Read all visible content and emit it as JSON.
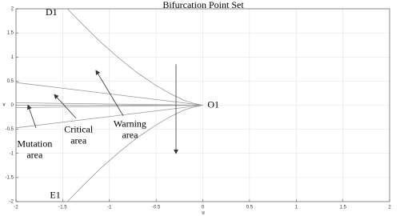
{
  "chart_data": {
    "type": "line",
    "title": "Bifurcation Point Set",
    "x_label": "u",
    "y_label": "v",
    "xlim": [
      -2,
      2
    ],
    "ylim": [
      -2,
      2
    ],
    "xticks": [
      -2,
      -1.5,
      -1,
      -0.5,
      0,
      0.5,
      1,
      1.5,
      2
    ],
    "yticks": [
      -2,
      -1.5,
      -1,
      -0.5,
      0,
      0.5,
      1,
      1.5,
      2
    ],
    "grid": true,
    "series": [
      {
        "color": "#9a9a9a",
        "x": [
          -1.45,
          -1.3,
          -1.1,
          -0.9,
          -0.7,
          -0.5,
          -0.35,
          -0.2,
          -0.1,
          0
        ],
        "values": [
          2.0,
          1.7,
          1.32,
          0.98,
          0.67,
          0.41,
          0.24,
          0.1,
          0.04,
          0
        ]
      },
      {
        "color": "#9a9a9a",
        "x": [
          -1.45,
          -1.3,
          -1.1,
          -0.9,
          -0.7,
          -0.5,
          -0.35,
          -0.2,
          -0.1,
          0
        ],
        "values": [
          -2.0,
          -1.7,
          -1.32,
          -0.98,
          -0.67,
          -0.41,
          -0.24,
          -0.1,
          -0.04,
          0
        ]
      },
      {
        "color": "#9a9a9a",
        "x": [
          -2,
          0
        ],
        "values": [
          0.47,
          0
        ]
      },
      {
        "color": "#9a9a9a",
        "x": [
          -2,
          0
        ],
        "values": [
          -0.47,
          0
        ]
      },
      {
        "color": "#9a9a9a",
        "x": [
          -2,
          0
        ],
        "values": [
          0.05,
          0
        ]
      },
      {
        "color": "#9a9a9a",
        "x": [
          -2,
          0
        ],
        "values": [
          -0.05,
          0
        ]
      },
      {
        "color": "#9a9a9a",
        "x": [
          -2,
          0
        ],
        "values": [
          0,
          0
        ]
      }
    ],
    "annotations": [
      {
        "lines": [
          "D1"
        ]
      },
      {
        "lines": [
          "E1"
        ]
      },
      {
        "lines": [
          "O1"
        ]
      },
      {
        "lines": [
          "Warning",
          "area"
        ]
      },
      {
        "lines": [
          "Critical",
          "area"
        ]
      },
      {
        "lines": [
          "Mutation",
          "area"
        ]
      }
    ]
  }
}
